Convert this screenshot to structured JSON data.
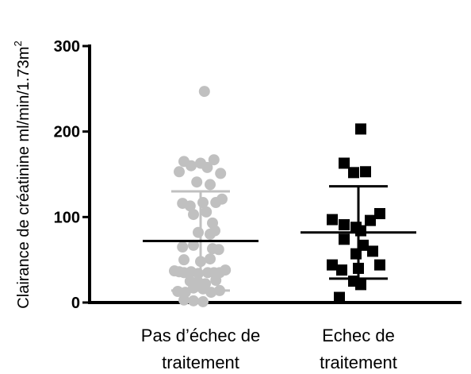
{
  "chart_data": {
    "type": "scatter",
    "title": "",
    "ylabel_main": "Clairance de créatinine ml/min/1.73m",
    "ylabel_sup": "2",
    "xlabel": "",
    "ylim": [
      0,
      300
    ],
    "yticks": [
      0,
      100,
      200,
      300
    ],
    "grid": false,
    "categories": [
      {
        "lines": [
          "Pas d’échec de",
          "traitement"
        ]
      },
      {
        "lines": [
          "Echec de",
          "traitement"
        ]
      }
    ],
    "series": [
      {
        "color": "#c0c0c0",
        "marker": "circle",
        "mean": 72,
        "sd_low": 14,
        "sd_high": 130,
        "points": [
          {
            "offset": 0.08,
            "y": 247
          },
          {
            "offset": -0.35,
            "y": 165
          },
          {
            "offset": -0.2,
            "y": 160
          },
          {
            "offset": 0.0,
            "y": 163
          },
          {
            "offset": 0.14,
            "y": 158
          },
          {
            "offset": 0.28,
            "y": 167
          },
          {
            "offset": -0.45,
            "y": 153
          },
          {
            "offset": 0.42,
            "y": 151
          },
          {
            "offset": -0.08,
            "y": 141
          },
          {
            "offset": 0.2,
            "y": 138
          },
          {
            "offset": -0.38,
            "y": 116
          },
          {
            "offset": -0.22,
            "y": 113
          },
          {
            "offset": 0.05,
            "y": 117
          },
          {
            "offset": 0.32,
            "y": 117
          },
          {
            "offset": 0.45,
            "y": 121
          },
          {
            "offset": -0.15,
            "y": 103
          },
          {
            "offset": 0.12,
            "y": 106
          },
          {
            "offset": 0.25,
            "y": 93
          },
          {
            "offset": 0.3,
            "y": 84
          },
          {
            "offset": -0.05,
            "y": 82
          },
          {
            "offset": 0.2,
            "y": 80
          },
          {
            "offset": -0.38,
            "y": 65
          },
          {
            "offset": -0.15,
            "y": 67
          },
          {
            "offset": 0.25,
            "y": 63
          },
          {
            "offset": 0.38,
            "y": 62
          },
          {
            "offset": -0.35,
            "y": 50
          },
          {
            "offset": 0.0,
            "y": 48
          },
          {
            "offset": 0.2,
            "y": 51
          },
          {
            "offset": -0.55,
            "y": 37
          },
          {
            "offset": -0.45,
            "y": 36
          },
          {
            "offset": -0.35,
            "y": 35
          },
          {
            "offset": -0.2,
            "y": 36
          },
          {
            "offset": -0.05,
            "y": 34
          },
          {
            "offset": 0.15,
            "y": 35
          },
          {
            "offset": 0.28,
            "y": 35
          },
          {
            "offset": 0.4,
            "y": 35
          },
          {
            "offset": 0.52,
            "y": 38
          },
          {
            "offset": -0.22,
            "y": 25
          },
          {
            "offset": -0.05,
            "y": 24
          },
          {
            "offset": 0.1,
            "y": 22
          },
          {
            "offset": 0.32,
            "y": 26
          },
          {
            "offset": -0.15,
            "y": 17
          },
          {
            "offset": 0.05,
            "y": 16
          },
          {
            "offset": -0.48,
            "y": 13
          },
          {
            "offset": -0.32,
            "y": 12
          },
          {
            "offset": 0.22,
            "y": 12
          },
          {
            "offset": 0.4,
            "y": 14
          },
          {
            "offset": -0.35,
            "y": 3
          },
          {
            "offset": -0.15,
            "y": 2
          },
          {
            "offset": 0.05,
            "y": 1
          }
        ]
      },
      {
        "color": "#000000",
        "marker": "square",
        "mean": 82,
        "sd_low": 28,
        "sd_high": 136,
        "points": [
          {
            "offset": 0.05,
            "y": 203
          },
          {
            "offset": -0.3,
            "y": 163
          },
          {
            "offset": -0.1,
            "y": 152
          },
          {
            "offset": 0.15,
            "y": 153
          },
          {
            "offset": -0.55,
            "y": 97
          },
          {
            "offset": -0.3,
            "y": 91
          },
          {
            "offset": -0.05,
            "y": 88
          },
          {
            "offset": 0.05,
            "y": 84
          },
          {
            "offset": 0.25,
            "y": 96
          },
          {
            "offset": 0.45,
            "y": 104
          },
          {
            "offset": -0.3,
            "y": 74
          },
          {
            "offset": 0.1,
            "y": 67
          },
          {
            "offset": -0.05,
            "y": 57
          },
          {
            "offset": 0.3,
            "y": 60
          },
          {
            "offset": -0.55,
            "y": 44
          },
          {
            "offset": -0.35,
            "y": 38
          },
          {
            "offset": 0.0,
            "y": 40
          },
          {
            "offset": 0.45,
            "y": 44
          },
          {
            "offset": -0.1,
            "y": 25
          },
          {
            "offset": 0.05,
            "y": 21
          },
          {
            "offset": -0.4,
            "y": 6
          }
        ]
      }
    ]
  }
}
